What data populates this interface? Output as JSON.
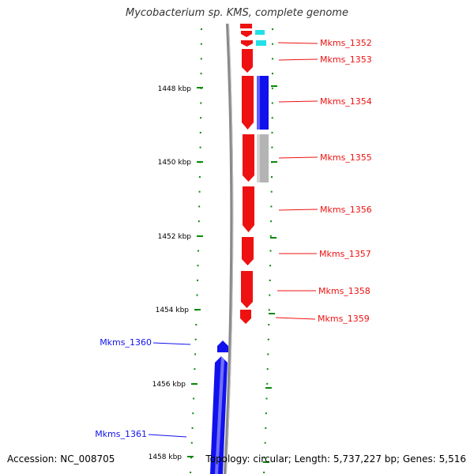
{
  "title": "Mycobacterium sp. KMS, complete genome",
  "footer": {
    "accession": "Accession: NC_008705",
    "summary": "Topology: circular; Length: 5,737,227 bp; Genes: 5,516"
  },
  "colors": {
    "forward": "#ee1111",
    "reverse": "#1111ee",
    "cyan": "#22e0e8",
    "gray": "#b4b4b4",
    "tick": "#0a8a0a",
    "backbone": "#8a8a8a"
  },
  "axis_labels": [
    "1448 kbp",
    "1450 kbp",
    "1452 kbp",
    "1454 kbp",
    "1456 kbp",
    "1458 kbp"
  ],
  "genes": [
    {
      "name": "Mkms_1352",
      "strand": "forward",
      "color": "red"
    },
    {
      "name": "Mkms_1353",
      "strand": "forward",
      "color": "red"
    },
    {
      "name": "Mkms_1354",
      "strand": "forward",
      "color": "red"
    },
    {
      "name": "Mkms_1355",
      "strand": "forward",
      "color": "red"
    },
    {
      "name": "Mkms_1356",
      "strand": "forward",
      "color": "red"
    },
    {
      "name": "Mkms_1357",
      "strand": "forward",
      "color": "red"
    },
    {
      "name": "Mkms_1358",
      "strand": "forward",
      "color": "red"
    },
    {
      "name": "Mkms_1359",
      "strand": "forward",
      "color": "red"
    },
    {
      "name": "Mkms_1360",
      "strand": "reverse",
      "color": "blue"
    },
    {
      "name": "Mkms_1361",
      "strand": "reverse",
      "color": "blue"
    }
  ]
}
